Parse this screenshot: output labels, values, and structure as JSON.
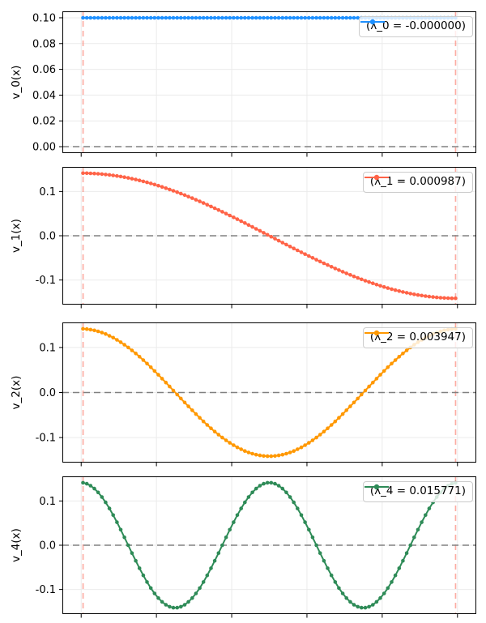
{
  "figure": {
    "background": "#ffffff",
    "n_subplots": 4,
    "grid": true,
    "x_tick_labels_visible": false
  },
  "styles": {
    "grid_color": "#ebebeb",
    "spine_color": "#000000",
    "tick_color": "#000000",
    "tick_label_color": "#000000",
    "zero_line_color": "#808080",
    "zero_line_dash": "8,5",
    "vline_color": "rgba(250,128,114,0.65)",
    "vline_dash": "7,5",
    "legend_bg": "rgba(255,255,255,0.8)",
    "legend_border": "#cccccc"
  },
  "shared_x": {
    "xlim": [
      -0.05,
      1.05
    ],
    "xticks": [
      0,
      0.2,
      0.4,
      0.6,
      0.8,
      1.0
    ],
    "vlines": [
      0.005,
      0.995
    ],
    "zero_line_y": 0
  },
  "chart_data": [
    {
      "type": "line",
      "ylabel": "v_0(x)",
      "legend_label": "(λ_0 = -0.000000)",
      "eigenvalue": "-0.000000",
      "color": "#1e90ff",
      "marker": "circle",
      "ylim": [
        -0.005,
        0.105
      ],
      "yticks": [
        {
          "v": 0.0,
          "label": "0.00"
        },
        {
          "v": 0.02,
          "label": "0.02"
        },
        {
          "v": 0.04,
          "label": "0.04"
        },
        {
          "v": 0.06,
          "label": "0.06"
        },
        {
          "v": 0.08,
          "label": "0.08"
        },
        {
          "v": 0.1,
          "label": "0.10"
        }
      ],
      "series": {
        "name": "v_0",
        "formula": "y = 0.1 (constant eigenvector)",
        "n_points": 100,
        "x_of_i": "(i+0.5)/100",
        "amplitude": 0.1,
        "cosine_half_periods": 0
      }
    },
    {
      "type": "line",
      "ylabel": "v_1(x)",
      "legend_label": "(λ_1 = 0.000987)",
      "eigenvalue": "0.000987",
      "color": "#ff6347",
      "marker": "circle",
      "ylim": [
        -0.1556,
        0.1556
      ],
      "yticks": [
        {
          "v": -0.1,
          "label": "-0.1"
        },
        {
          "v": 0.0,
          "label": "0.0"
        },
        {
          "v": 0.1,
          "label": "0.1"
        }
      ],
      "series": {
        "name": "v_1",
        "formula": "y = 0.14142*cos(1*pi*x)",
        "n_points": 100,
        "x_of_i": "(i+0.5)/100",
        "amplitude": 0.14142,
        "cosine_half_periods": 1
      }
    },
    {
      "type": "line",
      "ylabel": "v_2(x)",
      "legend_label": "(λ_2 = 0.003947)",
      "eigenvalue": "0.003947",
      "color": "#ff9800",
      "marker": "circle",
      "ylim": [
        -0.1556,
        0.1556
      ],
      "yticks": [
        {
          "v": -0.1,
          "label": "-0.1"
        },
        {
          "v": 0.0,
          "label": "0.0"
        },
        {
          "v": 0.1,
          "label": "0.1"
        }
      ],
      "series": {
        "name": "v_2",
        "formula": "y = 0.14142*cos(2*pi*x)",
        "n_points": 100,
        "x_of_i": "(i+0.5)/100",
        "amplitude": 0.14142,
        "cosine_half_periods": 2
      }
    },
    {
      "type": "line",
      "ylabel": "v_4(x)",
      "legend_label": "(λ_4 = 0.015771)",
      "eigenvalue": "0.015771",
      "color": "#2e8b57",
      "marker": "circle",
      "ylim": [
        -0.1556,
        0.1556
      ],
      "yticks": [
        {
          "v": -0.1,
          "label": "-0.1"
        },
        {
          "v": 0.0,
          "label": "0.0"
        },
        {
          "v": 0.1,
          "label": "0.1"
        }
      ],
      "series": {
        "name": "v_4",
        "formula": "y = 0.14142*cos(4*pi*x)",
        "n_points": 100,
        "x_of_i": "(i+0.5)/100",
        "amplitude": 0.14142,
        "cosine_half_periods": 4
      }
    }
  ]
}
